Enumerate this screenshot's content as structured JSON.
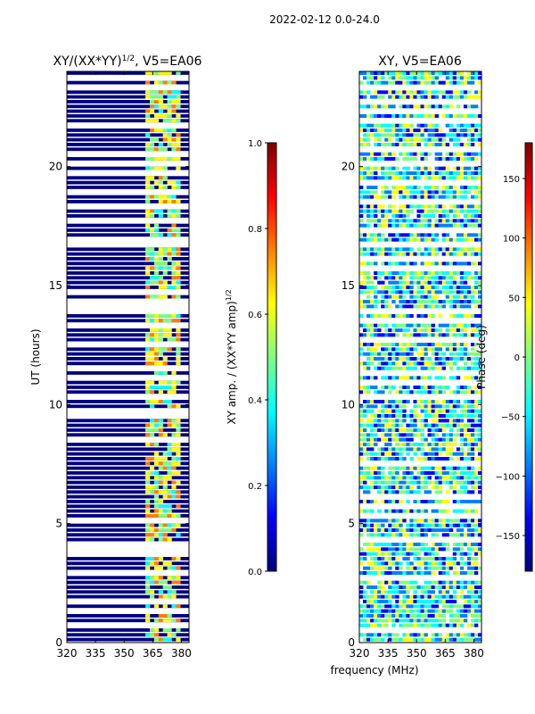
{
  "figure": {
    "suptitle": "2022-02-12 0.0-24.0"
  },
  "chart_data": [
    {
      "type": "heatmap",
      "title": "XY/(XX*YY)",
      "title_superscript": "1/2",
      "title_suffix": ", V5=EA06",
      "xlabel": "",
      "ylabel": "UT (hours)",
      "xlim": [
        320,
        384
      ],
      "ylim": [
        0,
        24
      ],
      "xticks": [
        320,
        335,
        350,
        365,
        380
      ],
      "yticks": [
        0,
        5,
        10,
        15,
        20
      ],
      "colorbar": {
        "label": "XY amp. / (XX*YY amp)",
        "label_superscript": "1/2",
        "range": [
          0.0,
          1.0
        ],
        "ticks": [
          "0.0",
          "0.2",
          "0.4",
          "0.6",
          "0.8",
          "1.0"
        ],
        "colormap": "jet"
      },
      "data_band_mhz": [
        361,
        380
      ],
      "summary": "Normalized amplitude is near 0 (dark blue) below ~361 MHz; valid channels 361–380 MHz show values ~0.4–0.8"
    },
    {
      "type": "heatmap",
      "title": "XY, V5=EA06",
      "xlabel": "frequency (MHz)",
      "ylabel": "",
      "xlim": [
        320,
        384
      ],
      "ylim": [
        0,
        24
      ],
      "xticks": [
        320,
        335,
        350,
        365,
        380
      ],
      "yticks": [
        0,
        5,
        10,
        15,
        20
      ],
      "colorbar": {
        "label": "Phase (deg)",
        "range": [
          -180,
          180
        ],
        "ticks": [
          "150",
          "100",
          "50",
          "0",
          "−50",
          "−100",
          "−150"
        ],
        "colormap": "jet"
      },
      "summary": "Phase across full band, mostly scattered between −50 and +100 deg"
    }
  ],
  "colors": {
    "jet": [
      "#00007f",
      "#0000ff",
      "#007fff",
      "#00ffff",
      "#7fff7f",
      "#ffff00",
      "#ff7f00",
      "#ff0000",
      "#7f0000"
    ]
  }
}
